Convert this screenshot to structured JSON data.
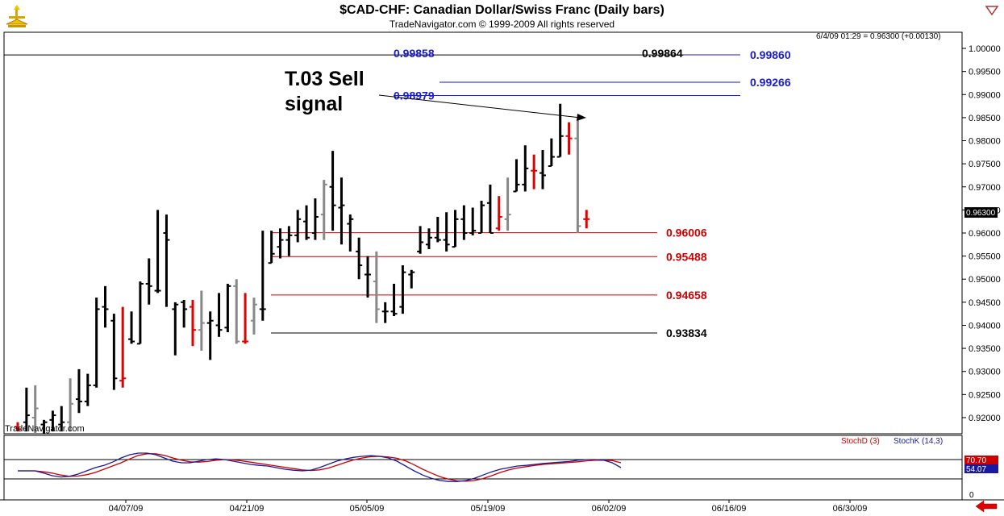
{
  "header": {
    "title": "$CAD-CHF:  Canadian Dollar/Swiss Franc  (Daily bars)",
    "copyright": "TradeNavigator.com © 1999-2009 All rights reserved"
  },
  "quote_readout": "6/4/09 01:29 = 0.96300 (+0.00130)",
  "watermark": "TradeNavigator.com",
  "price_marker": "0.96300",
  "annotation": {
    "line1": "T.03 Sell",
    "line2": "signal"
  },
  "stoch": {
    "label_d": "StochD (3)",
    "label_k": "StochK (14,3)",
    "value_d": "70.70",
    "value_k": "54.07",
    "axis_zero": "0",
    "color_d": "#cc0000",
    "color_k": "#1a1aa0",
    "levels": [
      80,
      20
    ],
    "k": [
      45,
      45,
      45,
      38,
      30,
      26,
      28,
      35,
      45,
      55,
      62,
      72,
      85,
      95,
      100,
      100,
      95,
      85,
      75,
      70,
      70,
      75,
      80,
      82,
      80,
      75,
      70,
      65,
      62,
      60,
      55,
      50,
      47,
      45,
      47,
      55,
      65,
      75,
      82,
      87,
      90,
      92,
      90,
      85,
      75,
      60,
      45,
      32,
      22,
      15,
      12,
      12,
      15,
      22,
      32,
      42,
      50,
      55,
      60,
      62,
      65,
      68,
      70,
      72,
      74,
      78,
      80,
      80,
      78,
      70,
      55
    ],
    "d": [
      45,
      45,
      45,
      42,
      38,
      32,
      28,
      29,
      33,
      40,
      50,
      60,
      70,
      82,
      93,
      98,
      98,
      93,
      85,
      78,
      73,
      72,
      74,
      78,
      80,
      79,
      76,
      72,
      68,
      64,
      60,
      56,
      52,
      48,
      46,
      48,
      53,
      62,
      71,
      79,
      85,
      89,
      90,
      88,
      84,
      76,
      64,
      50,
      38,
      27,
      19,
      14,
      13,
      15,
      21,
      30,
      40,
      48,
      54,
      58,
      62,
      65,
      67,
      69,
      71,
      73,
      76,
      78,
      78,
      77,
      70
    ]
  },
  "chart_data": {
    "type": "ohlc",
    "title": "$CAD-CHF:  Canadian Dollar/Swiss Franc  (Daily bars)",
    "xlabel": "",
    "ylabel": "",
    "ylim": [
      0.9165,
      1.0035
    ],
    "y_ticks": [
      1.0,
      0.995,
      0.99,
      0.985,
      0.98,
      0.975,
      0.97,
      0.965,
      0.96,
      0.955,
      0.95,
      0.945,
      0.94,
      0.935,
      0.93,
      0.925,
      0.92
    ],
    "y_tick_labels": [
      "1.00000",
      "0.99500",
      "0.99000",
      "0.98500",
      "0.98000",
      "0.97500",
      "0.97000",
      "0.96500",
      "0.96000",
      "0.95500",
      "0.95000",
      "0.94500",
      "0.94000",
      "0.93500",
      "0.93000",
      "0.92500",
      "0.92000"
    ],
    "x_tick_labels": [
      "04/07/09",
      "04/21/09",
      "05/05/09",
      "05/19/09",
      "06/02/09",
      "06/16/09",
      "06/30/09"
    ],
    "bar_colors": {
      "black": "#000000",
      "gray": "#888888",
      "red": "#e00000"
    },
    "bars": [
      {
        "o": 0.918,
        "h": 0.919,
        "l": 0.917,
        "c": 0.9175,
        "color": "red"
      },
      {
        "o": 0.919,
        "h": 0.9265,
        "l": 0.917,
        "c": 0.9205,
        "color": "black"
      },
      {
        "o": 0.92,
        "h": 0.927,
        "l": 0.9165,
        "c": 0.922,
        "color": "gray"
      },
      {
        "o": 0.9185,
        "h": 0.9195,
        "l": 0.9165,
        "c": 0.919,
        "color": "black"
      },
      {
        "o": 0.9195,
        "h": 0.9215,
        "l": 0.917,
        "c": 0.9205,
        "color": "black"
      },
      {
        "o": 0.9185,
        "h": 0.9225,
        "l": 0.917,
        "c": 0.919,
        "color": "black"
      },
      {
        "o": 0.919,
        "h": 0.9285,
        "l": 0.917,
        "c": 0.923,
        "color": "gray"
      },
      {
        "o": 0.924,
        "h": 0.9305,
        "l": 0.921,
        "c": 0.9235,
        "color": "black"
      },
      {
        "o": 0.9235,
        "h": 0.9295,
        "l": 0.9225,
        "c": 0.927,
        "color": "black"
      },
      {
        "o": 0.927,
        "h": 0.946,
        "l": 0.9265,
        "c": 0.9435,
        "color": "black"
      },
      {
        "o": 0.944,
        "h": 0.9485,
        "l": 0.9395,
        "c": 0.9435,
        "color": "black"
      },
      {
        "o": 0.941,
        "h": 0.9425,
        "l": 0.926,
        "c": 0.9285,
        "color": "black"
      },
      {
        "o": 0.928,
        "h": 0.944,
        "l": 0.9265,
        "c": 0.9285,
        "color": "red"
      },
      {
        "o": 0.937,
        "h": 0.943,
        "l": 0.936,
        "c": 0.9365,
        "color": "black"
      },
      {
        "o": 0.936,
        "h": 0.9495,
        "l": 0.936,
        "c": 0.949,
        "color": "black"
      },
      {
        "o": 0.949,
        "h": 0.9545,
        "l": 0.9445,
        "c": 0.9485,
        "color": "black"
      },
      {
        "o": 0.9475,
        "h": 0.965,
        "l": 0.947,
        "c": 0.9475,
        "color": "black"
      },
      {
        "o": 0.96,
        "h": 0.964,
        "l": 0.944,
        "c": 0.9585,
        "color": "black"
      },
      {
        "o": 0.9435,
        "h": 0.945,
        "l": 0.9335,
        "c": 0.9445,
        "color": "black"
      },
      {
        "o": 0.945,
        "h": 0.9455,
        "l": 0.9395,
        "c": 0.9435,
        "color": "black"
      },
      {
        "o": 0.944,
        "h": 0.9455,
        "l": 0.9355,
        "c": 0.939,
        "color": "red"
      },
      {
        "o": 0.939,
        "h": 0.9475,
        "l": 0.9345,
        "c": 0.9405,
        "color": "gray"
      },
      {
        "o": 0.9405,
        "h": 0.943,
        "l": 0.9325,
        "c": 0.941,
        "color": "black"
      },
      {
        "o": 0.94,
        "h": 0.947,
        "l": 0.9375,
        "c": 0.939,
        "color": "black"
      },
      {
        "o": 0.9395,
        "h": 0.949,
        "l": 0.9385,
        "c": 0.9485,
        "color": "black"
      },
      {
        "o": 0.9485,
        "h": 0.95,
        "l": 0.936,
        "c": 0.9365,
        "color": "gray"
      },
      {
        "o": 0.9365,
        "h": 0.947,
        "l": 0.936,
        "c": 0.9365,
        "color": "red"
      },
      {
        "o": 0.941,
        "h": 0.946,
        "l": 0.938,
        "c": 0.9445,
        "color": "gray"
      },
      {
        "o": 0.9435,
        "h": 0.9605,
        "l": 0.941,
        "c": 0.9435,
        "color": "black"
      },
      {
        "o": 0.9535,
        "h": 0.9605,
        "l": 0.9535,
        "c": 0.9555,
        "color": "black"
      },
      {
        "o": 0.957,
        "h": 0.961,
        "l": 0.9545,
        "c": 0.9585,
        "color": "black"
      },
      {
        "o": 0.9585,
        "h": 0.9615,
        "l": 0.955,
        "c": 0.9595,
        "color": "black"
      },
      {
        "o": 0.9595,
        "h": 0.965,
        "l": 0.958,
        "c": 0.963,
        "color": "black"
      },
      {
        "o": 0.9625,
        "h": 0.966,
        "l": 0.9585,
        "c": 0.959,
        "color": "black"
      },
      {
        "o": 0.96,
        "h": 0.9675,
        "l": 0.9585,
        "c": 0.9635,
        "color": "black"
      },
      {
        "o": 0.964,
        "h": 0.9715,
        "l": 0.9585,
        "c": 0.9705,
        "color": "gray"
      },
      {
        "o": 0.97,
        "h": 0.9778,
        "l": 0.9605,
        "c": 0.966,
        "color": "black"
      },
      {
        "o": 0.9655,
        "h": 0.972,
        "l": 0.9575,
        "c": 0.966,
        "color": "black"
      },
      {
        "o": 0.962,
        "h": 0.964,
        "l": 0.956,
        "c": 0.963,
        "color": "black"
      },
      {
        "o": 0.956,
        "h": 0.959,
        "l": 0.95,
        "c": 0.953,
        "color": "black"
      },
      {
        "o": 0.951,
        "h": 0.955,
        "l": 0.946,
        "c": 0.951,
        "color": "black"
      },
      {
        "o": 0.9495,
        "h": 0.956,
        "l": 0.9405,
        "c": 0.9435,
        "color": "gray"
      },
      {
        "o": 0.943,
        "h": 0.945,
        "l": 0.9405,
        "c": 0.943,
        "color": "black"
      },
      {
        "o": 0.943,
        "h": 0.949,
        "l": 0.942,
        "c": 0.9425,
        "color": "black"
      },
      {
        "o": 0.944,
        "h": 0.953,
        "l": 0.9425,
        "c": 0.9515,
        "color": "black"
      },
      {
        "o": 0.951,
        "h": 0.952,
        "l": 0.948,
        "c": 0.9515,
        "color": "black"
      },
      {
        "o": 0.956,
        "h": 0.9615,
        "l": 0.9555,
        "c": 0.958,
        "color": "black"
      },
      {
        "o": 0.9575,
        "h": 0.961,
        "l": 0.9565,
        "c": 0.959,
        "color": "black"
      },
      {
        "o": 0.959,
        "h": 0.9635,
        "l": 0.958,
        "c": 0.9585,
        "color": "black"
      },
      {
        "o": 0.9585,
        "h": 0.9645,
        "l": 0.956,
        "c": 0.9575,
        "color": "black"
      },
      {
        "o": 0.957,
        "h": 0.965,
        "l": 0.957,
        "c": 0.963,
        "color": "black"
      },
      {
        "o": 0.963,
        "h": 0.966,
        "l": 0.9585,
        "c": 0.96,
        "color": "black"
      },
      {
        "o": 0.96,
        "h": 0.9655,
        "l": 0.9595,
        "c": 0.9605,
        "color": "black"
      },
      {
        "o": 0.96,
        "h": 0.967,
        "l": 0.96,
        "c": 0.966,
        "color": "black"
      },
      {
        "o": 0.9665,
        "h": 0.9705,
        "l": 0.96,
        "c": 0.96,
        "color": "black"
      },
      {
        "o": 0.961,
        "h": 0.968,
        "l": 0.9605,
        "c": 0.9635,
        "color": "red"
      },
      {
        "o": 0.963,
        "h": 0.972,
        "l": 0.9605,
        "c": 0.964,
        "color": "gray"
      },
      {
        "o": 0.969,
        "h": 0.976,
        "l": 0.969,
        "c": 0.9705,
        "color": "black"
      },
      {
        "o": 0.9705,
        "h": 0.979,
        "l": 0.969,
        "c": 0.974,
        "color": "black"
      },
      {
        "o": 0.9735,
        "h": 0.977,
        "l": 0.9695,
        "c": 0.9735,
        "color": "red"
      },
      {
        "o": 0.973,
        "h": 0.978,
        "l": 0.9695,
        "c": 0.9725,
        "color": "black"
      },
      {
        "o": 0.9745,
        "h": 0.9805,
        "l": 0.9745,
        "c": 0.9765,
        "color": "black"
      },
      {
        "o": 0.9765,
        "h": 0.988,
        "l": 0.9765,
        "c": 0.981,
        "color": "black"
      },
      {
        "o": 0.981,
        "h": 0.984,
        "l": 0.977,
        "c": 0.9805,
        "color": "red"
      },
      {
        "o": 0.9805,
        "h": 0.9845,
        "l": 0.96,
        "c": 0.9615,
        "color": "gray"
      },
      {
        "o": 0.963,
        "h": 0.965,
        "l": 0.961,
        "c": 0.963,
        "color": "red"
      }
    ],
    "levels": [
      {
        "value": 0.99858,
        "label": "0.99858",
        "color": "#1a1ad0",
        "line_color": "#000000",
        "x_from": 5,
        "x_to": 848,
        "label_at": "left"
      },
      {
        "value": 0.99864,
        "label": "0.99864",
        "color": "#000000",
        "line_color": "#000000",
        "x_from": 5,
        "x_to": 848,
        "label_at": "right"
      },
      {
        "value": 0.9986,
        "label": "0.99860",
        "color": "#1a1ad0",
        "line_color": "#1a1ad0",
        "x_from": 848,
        "x_to": 918,
        "label_at": "after"
      },
      {
        "value": 0.99266,
        "label": "0.99266",
        "color": "#1a1ad0",
        "line_color": "#1a1ad0",
        "x_from": 545,
        "x_to": 918,
        "label_at": "after"
      },
      {
        "value": 0.98979,
        "label": "0.98979",
        "color": "#1a1ad0",
        "line_color": "#1a1ad0",
        "x_from": 488,
        "x_to": 918,
        "label_at": "above-left"
      },
      {
        "value": 0.96006,
        "label": "0.96006",
        "color": "#cc0000",
        "line_color": "#cc0000",
        "x_from": 336,
        "x_to": 815,
        "label_at": "after"
      },
      {
        "value": 0.95488,
        "label": "0.95488",
        "color": "#cc0000",
        "line_color": "#cc0000",
        "x_from": 336,
        "x_to": 815,
        "label_at": "after"
      },
      {
        "value": 0.94658,
        "label": "0.94658",
        "color": "#cc0000",
        "line_color": "#cc0000",
        "x_from": 336,
        "x_to": 815,
        "label_at": "after"
      },
      {
        "value": 0.93834,
        "label": "0.93834",
        "color": "#000000",
        "line_color": "#000000",
        "x_from": 336,
        "x_to": 815,
        "label_at": "after"
      }
    ]
  }
}
